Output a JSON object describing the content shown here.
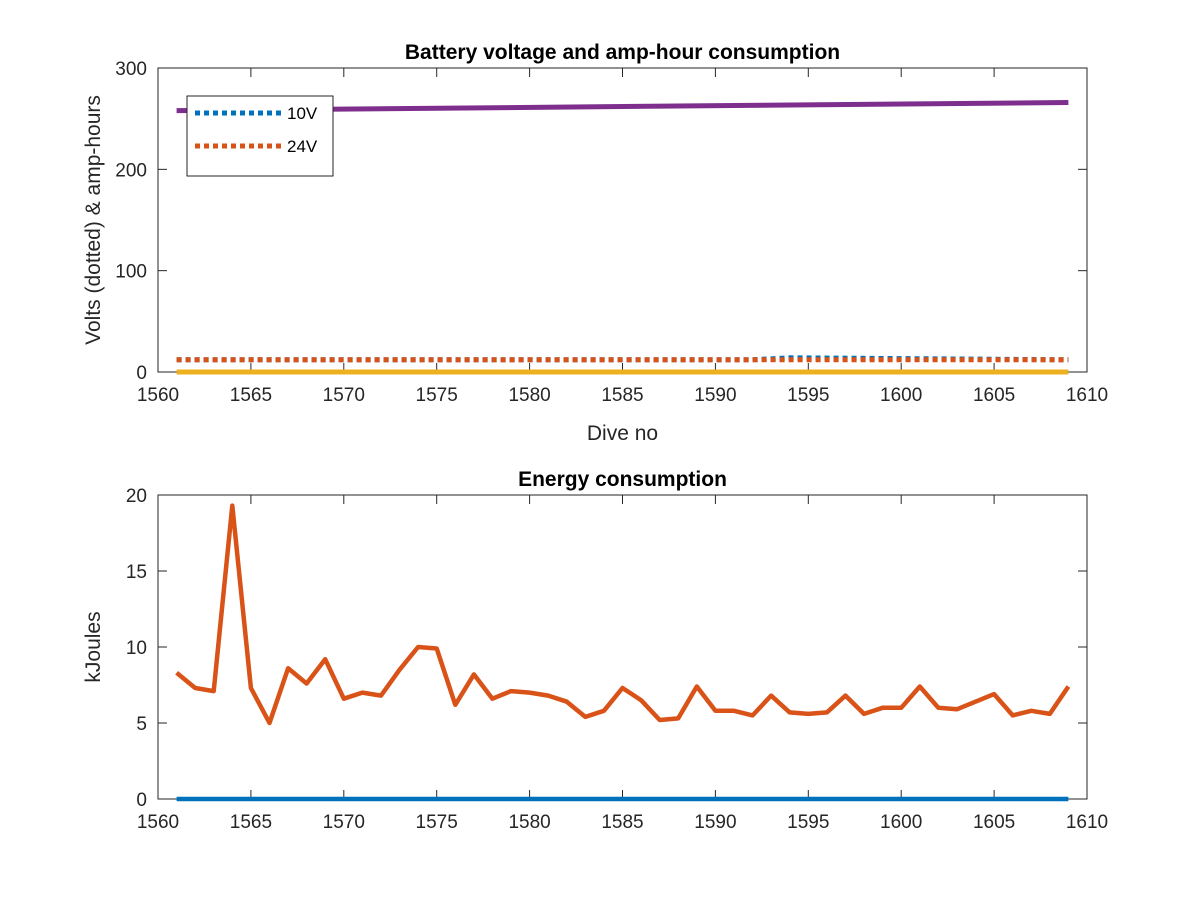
{
  "chart_data": [
    {
      "type": "line",
      "title": "Battery voltage and amp-hour consumption",
      "xlabel": "Dive no",
      "ylabel": "Volts (dotted) & amp-hours",
      "xlim": [
        1560,
        1610
      ],
      "ylim": [
        0,
        300
      ],
      "xticks": [
        "1560",
        "1565",
        "1570",
        "1575",
        "1580",
        "1585",
        "1590",
        "1595",
        "1600",
        "1605",
        "1610"
      ],
      "yticks": [
        "0",
        "100",
        "200",
        "300"
      ],
      "legend_position": "top-left",
      "series": [
        {
          "name": "10V",
          "style": "dotted",
          "color": "#0072BD",
          "x": [
            1561,
            1592,
            1594,
            1609
          ],
          "y": [
            12,
            12,
            14,
            12
          ]
        },
        {
          "name": "24V",
          "style": "dotted",
          "color": "#D95319",
          "x": [
            1561,
            1609
          ],
          "y": [
            12,
            12
          ]
        },
        {
          "style": "solid",
          "color": "#EDB120",
          "x": [
            1561,
            1609
          ],
          "y": [
            0,
            0
          ]
        },
        {
          "style": "solid",
          "color": "#7E2F8E",
          "x": [
            1561,
            1609
          ],
          "y": [
            258,
            266
          ]
        }
      ]
    },
    {
      "type": "line",
      "title": "Energy consumption",
      "xlabel": "",
      "ylabel": "kJoules",
      "xlim": [
        1560,
        1610
      ],
      "ylim": [
        0,
        20
      ],
      "xticks": [
        "1560",
        "1565",
        "1570",
        "1575",
        "1580",
        "1585",
        "1590",
        "1595",
        "1600",
        "1605",
        "1610"
      ],
      "yticks": [
        "0",
        "5",
        "10",
        "15",
        "20"
      ],
      "series": [
        {
          "style": "solid",
          "color": "#0072BD",
          "x": [
            1561,
            1609
          ],
          "y": [
            0,
            0
          ]
        },
        {
          "style": "solid",
          "color": "#D95319",
          "x": [
            1561,
            1562,
            1563,
            1564,
            1565,
            1566,
            1567,
            1568,
            1569,
            1570,
            1571,
            1572,
            1573,
            1574,
            1575,
            1576,
            1577,
            1578,
            1579,
            1580,
            1581,
            1582,
            1583,
            1584,
            1585,
            1586,
            1587,
            1588,
            1589,
            1590,
            1591,
            1592,
            1593,
            1594,
            1595,
            1596,
            1597,
            1598,
            1599,
            1600,
            1601,
            1602,
            1603,
            1604,
            1605,
            1606,
            1607,
            1608,
            1609
          ],
          "y": [
            8.3,
            7.3,
            7.1,
            19.3,
            7.3,
            5.0,
            8.6,
            7.6,
            9.2,
            6.6,
            7.0,
            6.8,
            8.5,
            10.0,
            9.9,
            6.2,
            8.2,
            6.6,
            7.1,
            7.0,
            6.8,
            6.4,
            5.4,
            5.8,
            7.3,
            6.5,
            5.2,
            5.3,
            7.4,
            5.8,
            5.8,
            5.5,
            6.8,
            5.7,
            5.6,
            5.7,
            6.8,
            5.6,
            6.0,
            6.0,
            7.4,
            6.0,
            5.9,
            6.4,
            6.9,
            5.5,
            5.8,
            5.6,
            7.4
          ]
        }
      ]
    }
  ]
}
